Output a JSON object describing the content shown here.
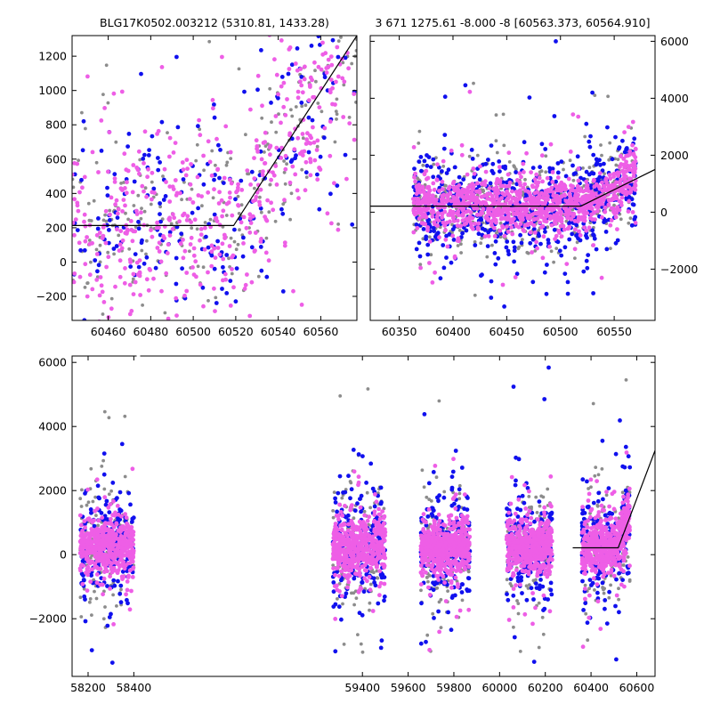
{
  "colors": {
    "gray": "#8c8c8c",
    "blue": "#1010ee",
    "pink": "#ee5ee6",
    "model": "#000000"
  },
  "chart_data": [
    {
      "id": "panel-top-left",
      "type": "scatter",
      "title": "BLG17K0502.003212 (5310.81, 1433.28)",
      "xlim": [
        60443,
        60577
      ],
      "ylim": [
        -340,
        1320
      ],
      "xticks": [
        60460,
        60480,
        60500,
        60520,
        60540,
        60560
      ],
      "yticks": [
        -200,
        0,
        200,
        400,
        600,
        800,
        1000,
        1200
      ],
      "y_axis_side": "left",
      "series": [
        {
          "color": "gray",
          "x_range": [
            60443,
            60577
          ],
          "baseline": 220,
          "base_sd": 230,
          "tail_from": 60520,
          "tail_slope": 19,
          "n": 260
        },
        {
          "color": "blue",
          "x_range": [
            60443,
            60577
          ],
          "baseline": 220,
          "base_sd": 330,
          "tail_from": 60520,
          "tail_slope": 19,
          "n": 230
        },
        {
          "color": "pink",
          "x_range": [
            60443,
            60577
          ],
          "baseline": 220,
          "base_sd": 290,
          "tail_from": 60520,
          "tail_slope": 19,
          "n": 520
        }
      ],
      "model_line": [
        [
          60443,
          213
        ],
        [
          60519,
          213
        ],
        [
          60577,
          1320
        ]
      ]
    },
    {
      "id": "panel-top-right",
      "type": "scatter",
      "title": "3 671 1275.61 -8.000 -8 [60563.373, 60564.910]",
      "xlim": [
        60323,
        60588
      ],
      "ylim": [
        -3800,
        6200
      ],
      "xticks": [
        60350,
        60400,
        60450,
        60500,
        60550
      ],
      "yticks": [
        -2000,
        0,
        2000,
        4000,
        6000
      ],
      "y_axis_side": "right",
      "series": [
        {
          "color": "gray",
          "x_range": [
            60363,
            60570
          ],
          "baseline": 230,
          "base_sd": 700,
          "tail_from": 60520,
          "tail_slope": 22,
          "n": 500
        },
        {
          "color": "blue",
          "x_range": [
            60363,
            60570
          ],
          "baseline": 230,
          "base_sd": 850,
          "tail_from": 60520,
          "tail_slope": 22,
          "n": 600
        },
        {
          "color": "pink",
          "x_range": [
            60363,
            60570
          ],
          "baseline": 230,
          "base_sd": 420,
          "tail_from": 60520,
          "tail_slope": 22,
          "n": 1100
        }
      ],
      "model_line": [
        [
          60323,
          213
        ],
        [
          60519,
          213
        ],
        [
          60588,
          1500
        ]
      ]
    },
    {
      "id": "panel-bottom",
      "type": "scatter",
      "title": "",
      "xlim": [
        58130,
        60680
      ],
      "ylim": [
        -3800,
        6200
      ],
      "xticks": [
        58200,
        58400,
        59400,
        59600,
        59800,
        60000,
        60200,
        60400,
        60600
      ],
      "yticks": [
        -2000,
        0,
        2000,
        4000,
        6000
      ],
      "y_axis_side": "left",
      "axis_break_x": 58420,
      "series": [
        {
          "color": "gray",
          "seasons": [
            [
              58165,
              58400
            ],
            [
              59270,
              59500
            ],
            [
              59655,
              59870
            ],
            [
              60030,
              60230
            ],
            [
              60360,
              60570
            ]
          ],
          "baseline": 230,
          "base_sd": 900,
          "tail_from": 60520,
          "tail_slope": 22,
          "n_per_season": 140
        },
        {
          "color": "blue",
          "seasons": [
            [
              58165,
              58400
            ],
            [
              59270,
              59500
            ],
            [
              59655,
              59870
            ],
            [
              60030,
              60230
            ],
            [
              60360,
              60570
            ]
          ],
          "baseline": 230,
          "base_sd": 800,
          "tail_from": 60520,
          "tail_slope": 22,
          "n_per_season": 220
        },
        {
          "color": "pink",
          "seasons": [
            [
              58165,
              58400
            ],
            [
              59270,
              59500
            ],
            [
              59655,
              59870
            ],
            [
              60030,
              60230
            ],
            [
              60360,
              60570
            ]
          ],
          "baseline": 230,
          "base_sd": 420,
          "tail_from": 60520,
          "tail_slope": 22,
          "n_per_season": 520
        }
      ],
      "model_line": [
        [
          60320,
          213
        ],
        [
          60519,
          213
        ],
        [
          60680,
          3250
        ]
      ]
    }
  ]
}
